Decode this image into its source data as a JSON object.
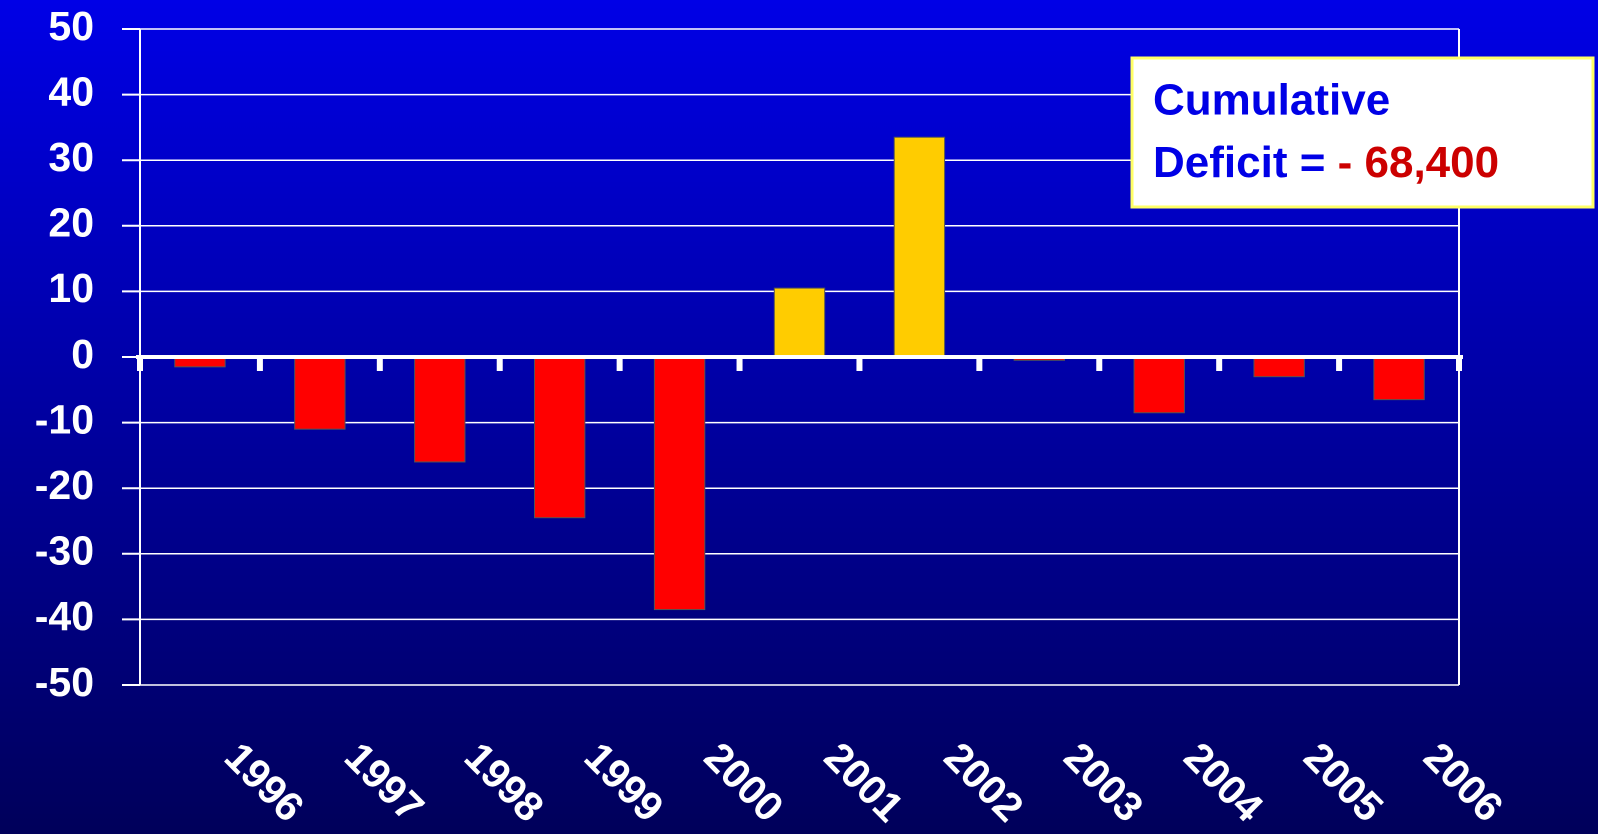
{
  "chart_data": {
    "type": "bar",
    "categories": [
      "1996",
      "1997",
      "1998",
      "1999",
      "2000",
      "2001",
      "2002",
      "2003",
      "2004",
      "2005",
      "2006"
    ],
    "values": [
      -1.5,
      -11,
      -16,
      -24.5,
      -38.5,
      10.5,
      33.5,
      -0.5,
      -8.5,
      -3,
      -6.5
    ],
    "colors": [
      "#ff0000",
      "#ff0000",
      "#ff0000",
      "#ff0000",
      "#ff0000",
      "#ffcc00",
      "#ffcc00",
      "#ff0000",
      "#ff0000",
      "#ff0000",
      "#ff0000"
    ],
    "ylim": [
      -50,
      50
    ],
    "yticks": [
      -50,
      -40,
      -30,
      -20,
      -10,
      0,
      10,
      20,
      30,
      40,
      50
    ],
    "grid": true,
    "annotation": {
      "lines": [
        "Cumulative",
        "Deficit = "
      ],
      "highlight": "- 68,400"
    }
  }
}
